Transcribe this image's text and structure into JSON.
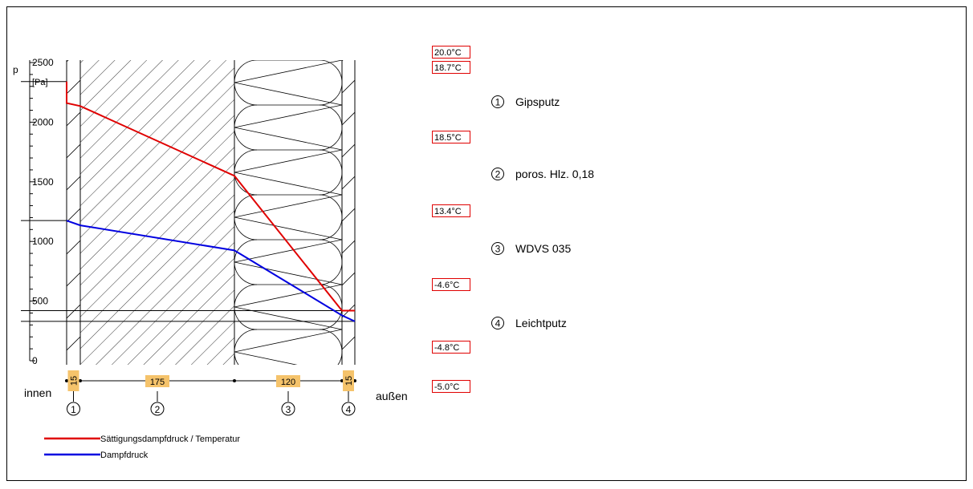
{
  "chart_data": {
    "type": "line",
    "title": "",
    "ylabel": "p",
    "yunit": "[Pa]",
    "ylim": [
      0,
      2500
    ],
    "yticks": [
      0,
      500,
      1000,
      1500,
      2000,
      2500
    ],
    "x": [
      "inside",
      "1|2",
      "2|3",
      "3|4",
      "outside"
    ],
    "series": [
      {
        "name": "Sättigungsdampfdruck / Temperatur",
        "color": "#e00000",
        "values": [
          2160,
          2135,
          1550,
          420,
          420
        ]
      },
      {
        "name": "Dampfdruck",
        "color": "#0000e0",
        "values": [
          1175,
          1135,
          925,
          380,
          330
        ]
      }
    ],
    "indoor_pressure_top": 2340,
    "indoor_vapor_line": 1175,
    "outdoor_lines": [
      420,
      330
    ]
  },
  "temperatures": [
    "20.0°C",
    "18.7°C",
    "18.5°C",
    "13.4°C",
    "-4.6°C",
    "-4.8°C",
    "-5.0°C"
  ],
  "layers": [
    {
      "num": "1",
      "name": "Gipsputz",
      "thickness": "15",
      "hatch": "diagonal-sparse"
    },
    {
      "num": "2",
      "name": "poros. Hlz. 0,18",
      "thickness": "175",
      "hatch": "diagonal"
    },
    {
      "num": "3",
      "name": "WDVS 035",
      "thickness": "120",
      "hatch": "insulation"
    },
    {
      "num": "4",
      "name": "Leichtputz",
      "thickness": "15",
      "hatch": "diagonal-sparse"
    }
  ],
  "sides": {
    "inside": "innen",
    "outside": "außen"
  },
  "legend": [
    {
      "label": "Sättigungsdampfdruck / Temperatur",
      "color": "#e00000"
    },
    {
      "label": "Dampfdruck",
      "color": "#0000e0"
    }
  ],
  "colors": {
    "saturation": "#e00000",
    "vapor": "#0000e0",
    "temp_box": "#e00000",
    "thickness_box": "#f5c36b"
  }
}
